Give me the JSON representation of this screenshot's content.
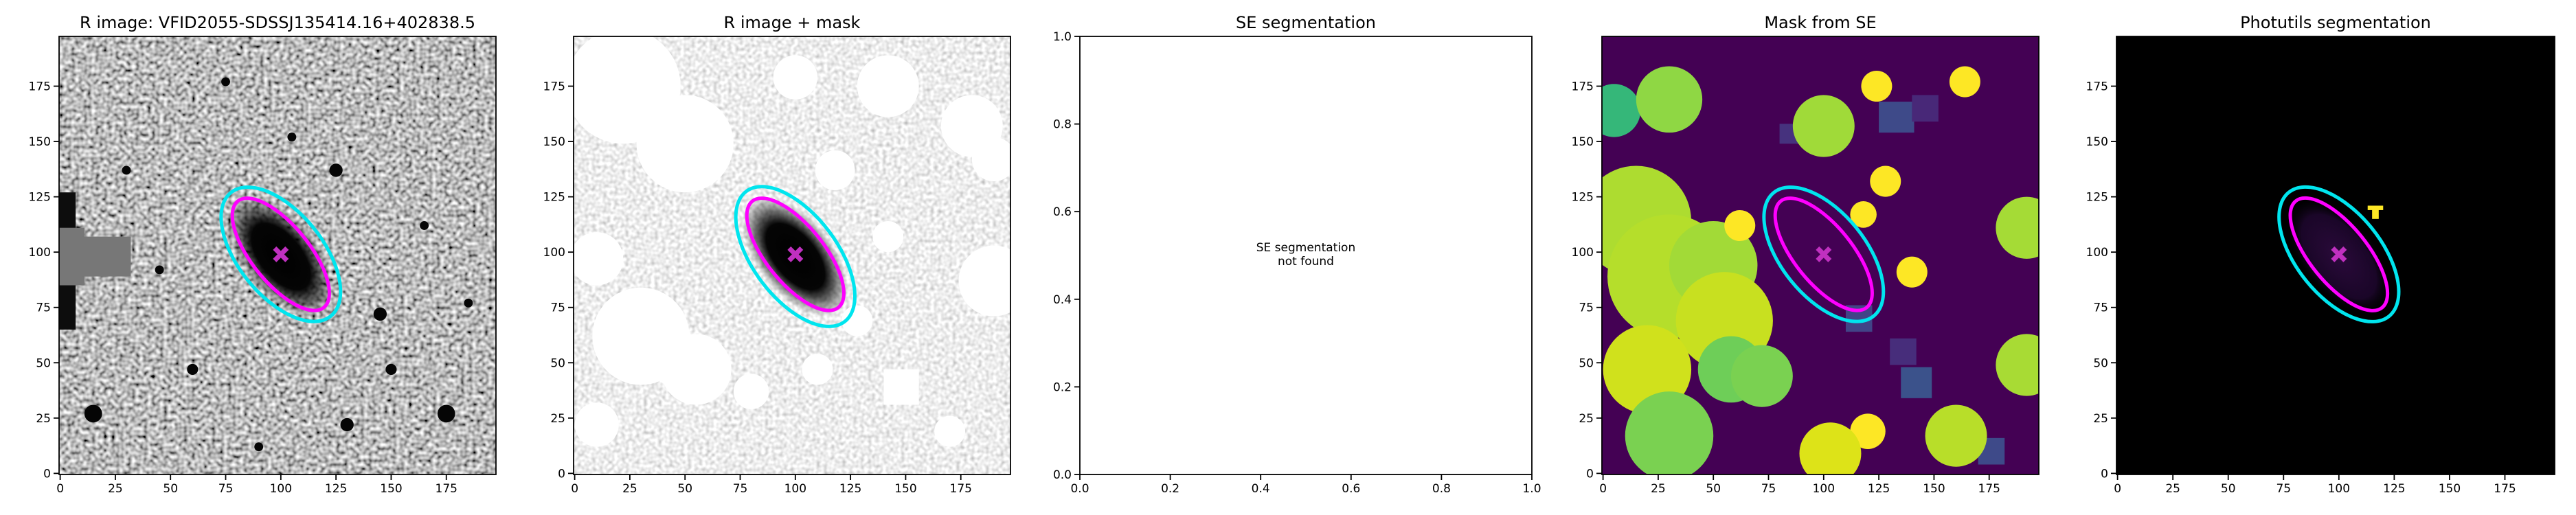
{
  "chart_data": [
    {
      "type": "image",
      "title": "R image: VFID2055-SDSSJ135414.16+402838.5",
      "xlim": [
        -0.5,
        197.5
      ],
      "ylim": [
        -0.5,
        197.5
      ],
      "xticks": [
        0,
        25,
        50,
        75,
        100,
        125,
        150,
        175
      ],
      "yticks": [
        0,
        25,
        50,
        75,
        100,
        125,
        150,
        175
      ],
      "center": {
        "x": 100,
        "y": 99,
        "color": "#c030c0"
      },
      "ellipses": [
        {
          "color": "#00e5ee",
          "x": 100,
          "y": 99,
          "a": 36,
          "b": 19,
          "angle": -51
        },
        {
          "color": "#ff00ff",
          "x": 100,
          "y": 99,
          "a": 31,
          "b": 13,
          "angle": -51
        }
      ]
    },
    {
      "type": "image",
      "title": "R image + mask",
      "xlim": [
        -0.5,
        197.5
      ],
      "ylim": [
        -0.5,
        197.5
      ],
      "xticks": [
        0,
        25,
        50,
        75,
        100,
        125,
        150,
        175
      ],
      "yticks": [
        0,
        25,
        50,
        75,
        100,
        125,
        150,
        175
      ],
      "center": {
        "x": 100,
        "y": 99,
        "color": "#c030c0"
      },
      "ellipses": [
        {
          "color": "#00e5ee",
          "x": 100,
          "y": 98,
          "a": 37,
          "b": 19,
          "angle": -53
        },
        {
          "color": "#ff00ff",
          "x": 100,
          "y": 99,
          "a": 31,
          "b": 13,
          "angle": -51
        }
      ]
    },
    {
      "type": "empty",
      "title": "SE segmentation",
      "xlim": [
        0,
        1
      ],
      "ylim": [
        0,
        1
      ],
      "xticks": [
        {
          "value": 0,
          "label": "0.0"
        },
        {
          "value": 0.2,
          "label": "0.2"
        },
        {
          "value": 0.4,
          "label": "0.4"
        },
        {
          "value": 0.6,
          "label": "0.6"
        },
        {
          "value": 0.8,
          "label": "0.8"
        },
        {
          "value": 1,
          "label": "1.0"
        }
      ],
      "yticks": [
        {
          "value": 0,
          "label": "0.0"
        },
        {
          "value": 0.2,
          "label": "0.2"
        },
        {
          "value": 0.4,
          "label": "0.4"
        },
        {
          "value": 0.6,
          "label": "0.6"
        },
        {
          "value": 0.8,
          "label": "0.8"
        },
        {
          "value": 1,
          "label": "1.0"
        }
      ],
      "annotation": [
        "SE segmentation",
        "not found"
      ]
    },
    {
      "type": "image",
      "title": "Mask from SE",
      "xlim": [
        -0.5,
        197.5
      ],
      "ylim": [
        -0.5,
        197.5
      ],
      "xticks": [
        0,
        25,
        50,
        75,
        100,
        125,
        150,
        175
      ],
      "yticks": [
        0,
        25,
        50,
        75,
        100,
        125,
        150,
        175
      ],
      "center": {
        "x": 100,
        "y": 99,
        "color": "#c030c0"
      },
      "ellipses": [
        {
          "color": "#00e5ee",
          "x": 100,
          "y": 99,
          "a": 36,
          "b": 19,
          "angle": -51
        },
        {
          "color": "#ff00ff",
          "x": 100,
          "y": 99,
          "a": 31,
          "b": 13,
          "angle": -51
        }
      ]
    },
    {
      "type": "image",
      "title": "Photutils segmentation",
      "xlim": [
        -0.5,
        197.5
      ],
      "ylim": [
        -0.5,
        197.5
      ],
      "xticks": [
        0,
        25,
        50,
        75,
        100,
        125,
        150,
        175
      ],
      "yticks": [
        0,
        25,
        50,
        75,
        100,
        125,
        150,
        175
      ],
      "center": {
        "x": 100,
        "y": 99,
        "color": "#c030c0"
      },
      "ellipses": [
        {
          "color": "#00e5ee",
          "x": 100,
          "y": 99,
          "a": 36,
          "b": 19,
          "angle": -51
        },
        {
          "color": "#ff00ff",
          "x": 100,
          "y": 99,
          "a": 31,
          "b": 13,
          "angle": -51
        }
      ]
    }
  ]
}
